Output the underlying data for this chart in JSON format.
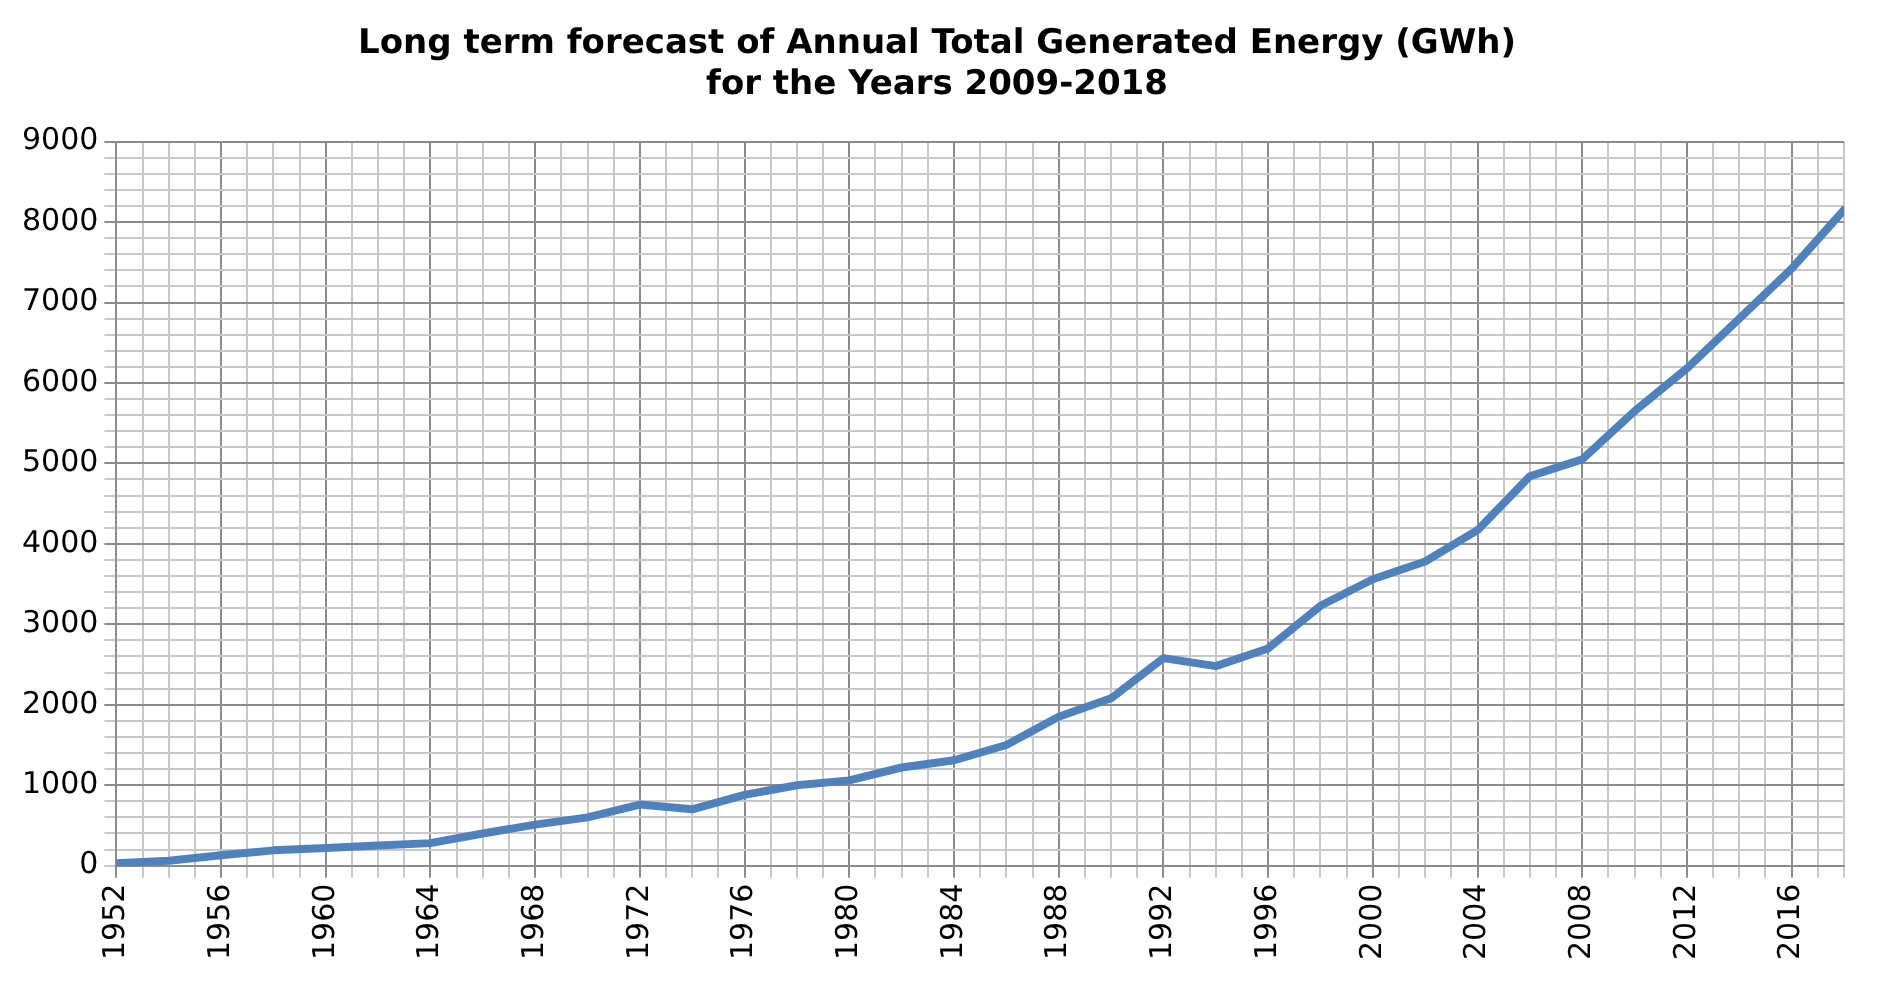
{
  "chart_data": {
    "type": "line",
    "title": [
      "Long term forecast of Annual Total Generated Energy (GWh)",
      "for the Years 2009-2018"
    ],
    "x": [
      1952,
      1954,
      1956,
      1958,
      1960,
      1962,
      1964,
      1966,
      1968,
      1970,
      1972,
      1974,
      1976,
      1978,
      1980,
      1982,
      1984,
      1986,
      1988,
      1990,
      1992,
      1994,
      1996,
      1998,
      2000,
      2002,
      2004,
      2006,
      2008,
      2010,
      2012,
      2014,
      2016,
      2018
    ],
    "series": [
      {
        "color": "#4f81bd",
        "values": [
          30,
          60,
          130,
          190,
          220,
          250,
          280,
          400,
          510,
          600,
          760,
          700,
          880,
          1000,
          1060,
          1220,
          1310,
          1500,
          1850,
          2080,
          2580,
          2480,
          2700,
          3230,
          3560,
          3780,
          4170,
          4840,
          5050,
          5650,
          6180,
          6800,
          7420,
          8150
        ]
      }
    ],
    "xlim": [
      1952,
      2018
    ],
    "xticks": [
      1952,
      {
        "value": 1953,
        "label": null
      },
      {
        "value": 1954,
        "label": null
      },
      {
        "value": 1955,
        "label": null
      },
      1956,
      {
        "value": 1957,
        "label": null
      },
      {
        "value": 1958,
        "label": null
      },
      {
        "value": 1959,
        "label": null
      },
      1960,
      {
        "value": 1961,
        "label": null
      },
      {
        "value": 1962,
        "label": null
      },
      {
        "value": 1963,
        "label": null
      },
      1964,
      {
        "value": 1965,
        "label": null
      },
      {
        "value": 1966,
        "label": null
      },
      {
        "value": 1967,
        "label": null
      },
      1968,
      {
        "value": 1969,
        "label": null
      },
      {
        "value": 1970,
        "label": null
      },
      {
        "value": 1971,
        "label": null
      },
      1972,
      {
        "value": 1973,
        "label": null
      },
      {
        "value": 1974,
        "label": null
      },
      {
        "value": 1975,
        "label": null
      },
      1976,
      {
        "value": 1977,
        "label": null
      },
      {
        "value": 1978,
        "label": null
      },
      {
        "value": 1979,
        "label": null
      },
      1980,
      {
        "value": 1981,
        "label": null
      },
      {
        "value": 1982,
        "label": null
      },
      {
        "value": 1983,
        "label": null
      },
      1984,
      {
        "value": 1985,
        "label": null
      },
      {
        "value": 1986,
        "label": null
      },
      {
        "value": 1987,
        "label": null
      },
      1988,
      {
        "value": 1989,
        "label": null
      },
      {
        "value": 1990,
        "label": null
      },
      {
        "value": 1991,
        "label": null
      },
      1992,
      {
        "value": 1993,
        "label": null
      },
      {
        "value": 1994,
        "label": null
      },
      {
        "value": 1995,
        "label": null
      },
      1996,
      {
        "value": 1997,
        "label": null
      },
      {
        "value": 1998,
        "label": null
      },
      {
        "value": 1999,
        "label": null
      },
      2000,
      {
        "value": 2001,
        "label": null
      },
      {
        "value": 2002,
        "label": null
      },
      {
        "value": 2003,
        "label": null
      },
      2004,
      {
        "value": 2005,
        "label": null
      },
      {
        "value": 2006,
        "label": null
      },
      {
        "value": 2007,
        "label": null
      },
      2008,
      {
        "value": 2009,
        "label": null
      },
      {
        "value": 2010,
        "label": null
      },
      {
        "value": 2011,
        "label": null
      },
      2012,
      {
        "value": 2013,
        "label": null
      },
      {
        "value": 2014,
        "label": null
      },
      {
        "value": 2015,
        "label": null
      },
      2016,
      {
        "value": 2017,
        "label": null
      },
      {
        "value": 2018,
        "label": null
      }
    ],
    "ylim": [
      0,
      9000
    ],
    "yticks": [
      0,
      {
        "value": 200,
        "label": null
      },
      {
        "value": 400,
        "label": null
      },
      {
        "value": 600,
        "label": null
      },
      {
        "value": 800,
        "label": null
      },
      1000,
      {
        "value": 1200,
        "label": null
      },
      {
        "value": 1400,
        "label": null
      },
      {
        "value": 1600,
        "label": null
      },
      {
        "value": 1800,
        "label": null
      },
      2000,
      {
        "value": 2200,
        "label": null
      },
      {
        "value": 2400,
        "label": null
      },
      {
        "value": 2600,
        "label": null
      },
      {
        "value": 2800,
        "label": null
      },
      3000,
      {
        "value": 3200,
        "label": null
      },
      {
        "value": 3400,
        "label": null
      },
      {
        "value": 3600,
        "label": null
      },
      {
        "value": 3800,
        "label": null
      },
      4000,
      {
        "value": 4200,
        "label": null
      },
      {
        "value": 4400,
        "label": null
      },
      {
        "value": 4600,
        "label": null
      },
      {
        "value": 4800,
        "label": null
      },
      5000,
      {
        "value": 5200,
        "label": null
      },
      {
        "value": 5400,
        "label": null
      },
      {
        "value": 5600,
        "label": null
      },
      {
        "value": 5800,
        "label": null
      },
      6000,
      {
        "value": 6200,
        "label": null
      },
      {
        "value": 6400,
        "label": null
      },
      {
        "value": 6600,
        "label": null
      },
      {
        "value": 6800,
        "label": null
      },
      7000,
      {
        "value": 7200,
        "label": null
      },
      {
        "value": 7400,
        "label": null
      },
      {
        "value": 7600,
        "label": null
      },
      {
        "value": 7800,
        "label": null
      },
      8000,
      {
        "value": 8200,
        "label": null
      },
      {
        "value": 8400,
        "label": null
      },
      {
        "value": 8600,
        "label": null
      },
      {
        "value": 8800,
        "label": null
      },
      9000
    ],
    "grid": true,
    "legend": false,
    "marker": "none",
    "line_style": "solid"
  }
}
